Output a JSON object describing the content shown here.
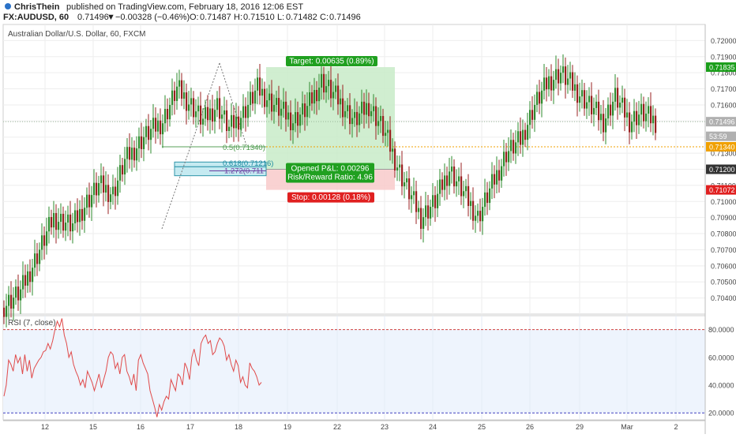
{
  "header": {
    "author": "ChrisThein",
    "published_text": "published on TradingView.com, February 18, 2016 12:06 EST",
    "symbol": "FX:AUDUSD, 60",
    "last": "0.71496",
    "change_arrow": "▼",
    "change": "−0.00328 (−0.46%)",
    "o_label": "O:",
    "o_value": "0.71487",
    "h_label": "H:",
    "h_value": "0.71510",
    "l_label": "L:",
    "l_value": "0.71482",
    "c_label": "C:",
    "c_value": "0.71496"
  },
  "chart_data": [
    {
      "type": "candlestick",
      "title": "Australian Dollar/U.S. Dollar, 60, FXCM",
      "ylim": [
        0.703,
        0.721
      ],
      "y_ticks": [
        "0.72000",
        "0.71900",
        "0.71800",
        "0.71700",
        "0.71600",
        "0.71500",
        "0.71400",
        "0.71300",
        "0.71200",
        "0.71100",
        "0.71000",
        "0.70900",
        "0.70800",
        "0.70700",
        "0.70600",
        "0.70500",
        "0.70400"
      ],
      "x_ticks": [
        "12",
        "15",
        "16",
        "17",
        "18",
        "19",
        "22",
        "23",
        "24",
        "25",
        "26",
        "29",
        "Mar",
        "2"
      ],
      "candle_close_path": [
        [
          0.7034,
          0
        ],
        [
          0.7044,
          8
        ],
        [
          0.707,
          8
        ],
        [
          0.709,
          6
        ],
        [
          0.7085,
          8
        ],
        [
          0.71,
          6
        ],
        [
          0.711,
          5
        ],
        [
          0.7105,
          6
        ],
        [
          0.7125,
          5
        ],
        [
          0.714,
          8
        ],
        [
          0.715,
          8
        ],
        [
          0.717,
          6
        ],
        [
          0.716,
          6
        ],
        [
          0.715,
          5
        ],
        [
          0.716,
          6
        ],
        [
          0.7145,
          5
        ],
        [
          0.7155,
          6
        ],
        [
          0.717,
          6
        ],
        [
          0.716,
          7
        ],
        [
          0.715,
          8
        ],
        [
          0.7158,
          6
        ],
        [
          0.7175,
          6
        ],
        [
          0.7165,
          6
        ],
        [
          0.715,
          8
        ],
        [
          0.716,
          6
        ],
        [
          0.7145,
          6
        ],
        [
          0.7115,
          8
        ],
        [
          0.709,
          8
        ],
        [
          0.71,
          6
        ],
        [
          0.712,
          6
        ],
        [
          0.7105,
          6
        ],
        [
          0.709,
          6
        ],
        [
          0.711,
          6
        ],
        [
          0.713,
          6
        ],
        [
          0.7138,
          6
        ],
        [
          0.716,
          6
        ],
        [
          0.7175,
          6
        ],
        [
          0.718,
          5
        ],
        [
          0.717,
          6
        ],
        [
          0.716,
          6
        ],
        [
          0.715,
          6
        ],
        [
          0.7165,
          5
        ],
        [
          0.715,
          6
        ],
        [
          0.7155,
          5
        ],
        [
          0.71496,
          6
        ]
      ],
      "price_labels": [
        {
          "value": 0.71835,
          "text": "0.71835",
          "color": "#1b9e1b"
        },
        {
          "value": 0.71496,
          "text": "0.71496",
          "color": "#b0b0b0"
        },
        {
          "value": 0.71405,
          "text": "53:59",
          "color": "#b0b0b0"
        },
        {
          "value": 0.7134,
          "text": "0.71340",
          "color": "#f0a000"
        },
        {
          "value": 0.712,
          "text": "0.71200",
          "color": "#333333"
        },
        {
          "value": 0.71072,
          "text": "0.71072",
          "color": "#e02020"
        }
      ],
      "position": {
        "entry": 0.712,
        "target": 0.71835,
        "stop": 0.71072,
        "start_x_tick": 18.4,
        "end_x_tick": 23.2,
        "target_label": "Target: 0.00635 (0.89%)",
        "stop_label": "Stop: 0.00128 (0.18%)",
        "pnl_label": "Opened P&L: 0.00296",
        "rr_label": "Risk/Reward Ratio: 4.96"
      },
      "fib": {
        "level_50_label": "0.5(0.71340)",
        "level_618_label": "0.618(0.71216)",
        "level_1272_label": "1.272(0.711",
        "level_50": 0.7134,
        "level_618": 0.71216,
        "level_1272": 0.7119,
        "zone_top": 0.71245,
        "zone_bottom": 0.7116
      },
      "colors": {
        "up": "#2e8b2e",
        "down": "#9a2020",
        "grid": "#eeeeee"
      }
    },
    {
      "type": "line",
      "title": "RSI (7, close)",
      "ylim": [
        15,
        90
      ],
      "y_ticks": [
        "80.0000",
        "60.0000",
        "40.0000",
        "20.0000"
      ],
      "levels": [
        80,
        20
      ],
      "values": [
        32,
        40,
        58,
        55,
        50,
        62,
        56,
        60,
        48,
        62,
        50,
        58,
        45,
        52,
        55,
        58,
        60,
        64,
        65,
        70,
        66,
        72,
        80,
        86,
        82,
        88,
        76,
        70,
        60,
        64,
        55,
        50,
        46,
        40,
        44,
        38,
        50,
        46,
        42,
        36,
        42,
        48,
        38,
        44,
        50,
        60,
        64,
        62,
        52,
        56,
        48,
        60,
        62,
        50,
        46,
        40,
        48,
        36,
        58,
        62,
        56,
        52,
        48,
        36,
        30,
        24,
        17,
        26,
        22,
        28,
        32,
        30,
        44,
        40,
        36,
        48,
        46,
        40,
        56,
        52,
        44,
        60,
        66,
        58,
        54,
        70,
        74,
        76,
        70,
        72,
        62,
        64,
        70,
        74,
        72,
        68,
        58,
        62,
        55,
        50,
        58,
        54,
        42,
        46,
        40,
        38,
        56,
        52,
        50,
        46,
        40,
        42
      ]
    }
  ]
}
